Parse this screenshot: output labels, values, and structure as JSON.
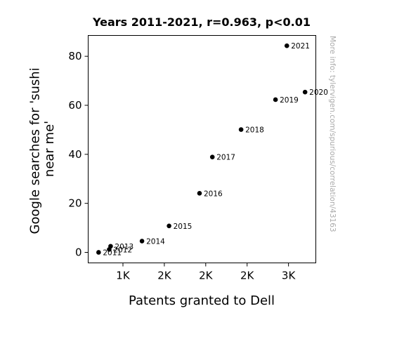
{
  "chart_data": {
    "type": "scatter",
    "title": "Years 2011-2021, r=0.963, p<0.01",
    "xlabel": "Patents granted to Dell",
    "ylabel_lines": [
      "Google searches for 'sushi",
      "near me'"
    ],
    "watermark": "More info: tylervigen.com/spurious/correlation/43163",
    "xlim": [
      580,
      3330
    ],
    "ylim": [
      -4.3,
      88.5
    ],
    "x_ticks": [
      {
        "value": 1000,
        "label": "1K"
      },
      {
        "value": 1500,
        "label": "2K"
      },
      {
        "value": 2000,
        "label": "2K"
      },
      {
        "value": 2500,
        "label": "2K"
      },
      {
        "value": 3000,
        "label": "3K"
      }
    ],
    "y_ticks": [
      {
        "value": 0,
        "label": "0"
      },
      {
        "value": 20,
        "label": "20"
      },
      {
        "value": 40,
        "label": "40"
      },
      {
        "value": 60,
        "label": "60"
      },
      {
        "value": 80,
        "label": "80"
      }
    ],
    "marker_color": "#000000",
    "points": [
      {
        "label": "2011",
        "x": 706,
        "y": 0
      },
      {
        "label": "2012",
        "x": 834,
        "y": 1.2
      },
      {
        "label": "2013",
        "x": 851,
        "y": 2.5
      },
      {
        "label": "2014",
        "x": 1230,
        "y": 4.6
      },
      {
        "label": "2015",
        "x": 1557,
        "y": 10.8
      },
      {
        "label": "2016",
        "x": 1925,
        "y": 24.1
      },
      {
        "label": "2017",
        "x": 2080,
        "y": 38.9
      },
      {
        "label": "2018",
        "x": 2427,
        "y": 50.1
      },
      {
        "label": "2019",
        "x": 2843,
        "y": 62.3
      },
      {
        "label": "2020",
        "x": 3200,
        "y": 65.4
      },
      {
        "label": "2021",
        "x": 2980,
        "y": 84.3
      }
    ]
  }
}
